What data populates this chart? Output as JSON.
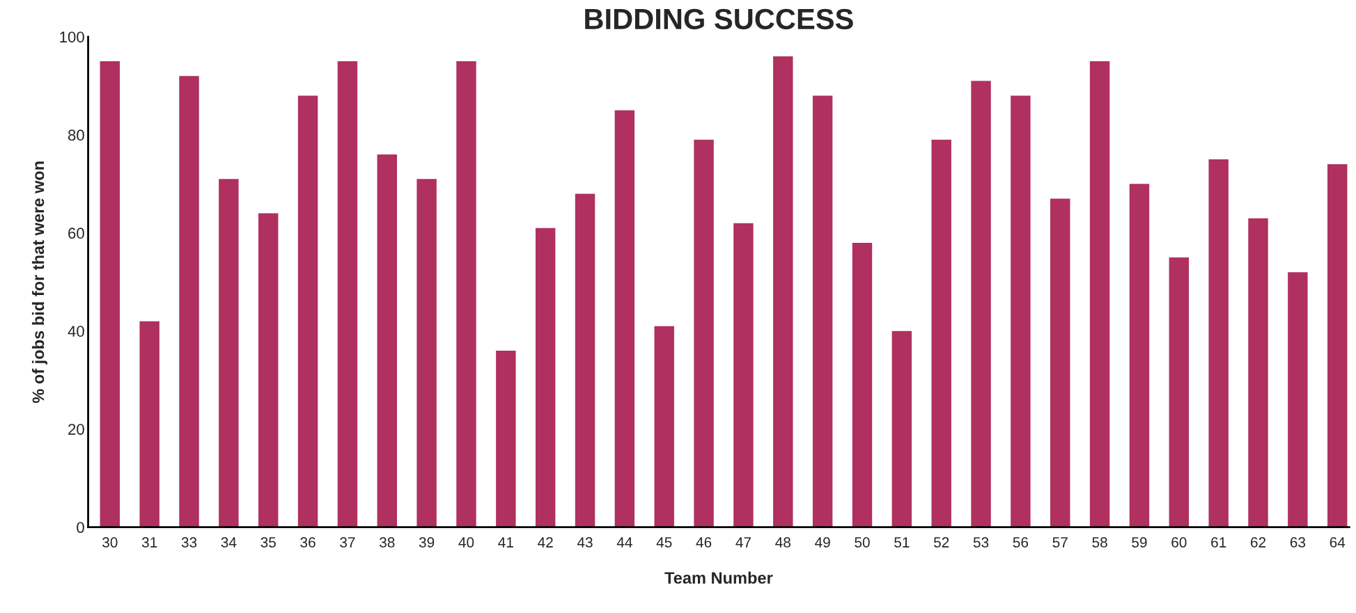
{
  "chart_data": {
    "type": "bar",
    "title": "BIDDING SUCCESS",
    "xlabel": "Team Number",
    "ylabel": "% of jobs bid for that were won",
    "categories": [
      "30",
      "31",
      "33",
      "34",
      "35",
      "36",
      "37",
      "38",
      "39",
      "40",
      "41",
      "42",
      "43",
      "44",
      "45",
      "46",
      "47",
      "48",
      "49",
      "50",
      "51",
      "52",
      "53",
      "56",
      "57",
      "58",
      "59",
      "60",
      "61",
      "62",
      "63",
      "64"
    ],
    "values": [
      95,
      42,
      92,
      71,
      64,
      88,
      95,
      76,
      71,
      95,
      36,
      61,
      68,
      85,
      41,
      79,
      62,
      96,
      88,
      58,
      40,
      79,
      91,
      88,
      67,
      95,
      70,
      55,
      75,
      63,
      52,
      74
    ],
    "color": "#b0305f",
    "ylim": [
      0,
      100
    ],
    "yticks": [
      0,
      20,
      40,
      60,
      80,
      100
    ],
    "grid": false,
    "legend": false
  }
}
